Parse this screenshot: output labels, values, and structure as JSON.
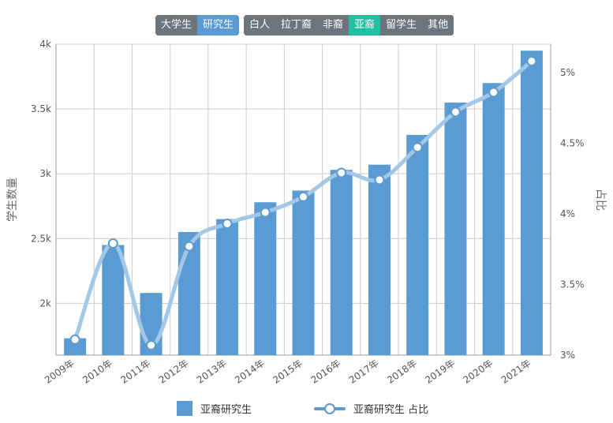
{
  "filters": {
    "level_buttons": [
      {
        "label": "大学生",
        "active": false
      },
      {
        "label": "研究生",
        "active": true
      }
    ],
    "group_buttons": [
      {
        "label": "白人",
        "active": false
      },
      {
        "label": "拉丁裔",
        "active": false
      },
      {
        "label": "非裔",
        "active": false
      },
      {
        "label": "亚裔",
        "active": true
      },
      {
        "label": "留学生",
        "active": false
      },
      {
        "label": "其他",
        "active": false
      }
    ]
  },
  "colors": {
    "bar": "#5a9bd4",
    "line": "#a3c7e6",
    "active_level": "#5a9bd4",
    "active_group": "#20c0a0",
    "inactive": "#6c757d"
  },
  "chart_data": {
    "type": "bar",
    "categories": [
      "2009年",
      "2010年",
      "2011年",
      "2012年",
      "2013年",
      "2014年",
      "2015年",
      "2016年",
      "2017年",
      "2018年",
      "2019年",
      "2020年",
      "2021年"
    ],
    "series": [
      {
        "name": "亚裔研究生",
        "type": "bar",
        "axis": "left",
        "values": [
          1730,
          2450,
          2080,
          2550,
          2650,
          2780,
          2870,
          3030,
          3070,
          3300,
          3550,
          3700,
          3950
        ]
      },
      {
        "name": "亚裔研究生 占比",
        "type": "line",
        "axis": "right",
        "values": [
          3.11,
          3.79,
          3.07,
          3.77,
          3.93,
          4.01,
          4.12,
          4.29,
          4.24,
          4.47,
          4.72,
          4.86,
          5.08
        ]
      }
    ],
    "ylabel": "学生数量",
    "y2label": "占比",
    "ylim": [
      1600,
      4000
    ],
    "y2lim": [
      3,
      5.2
    ],
    "yticks": [
      "2k",
      "2.5k",
      "3k",
      "3.5k",
      "4k"
    ],
    "ytick_values": [
      2000,
      2500,
      3000,
      3500,
      4000
    ],
    "y2ticks": [
      "3%",
      "3.5%",
      "4%",
      "4.5%",
      "5%"
    ],
    "y2tick_values": [
      3,
      3.5,
      4,
      4.5,
      5
    ],
    "grid": true,
    "legend": "bottom-center",
    "legend_labels": [
      "亚裔研究生",
      "亚裔研究生 占比"
    ]
  }
}
